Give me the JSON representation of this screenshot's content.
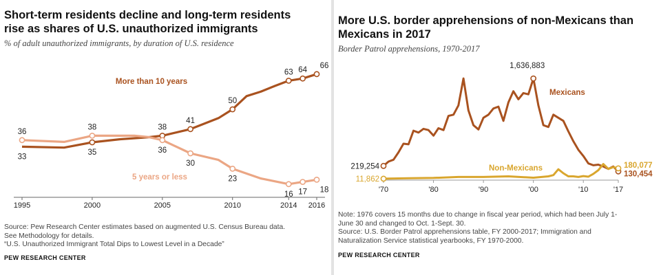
{
  "left": {
    "title_line1": "Short-term residents decline and long-term residents",
    "title_line2": "rise as shares of U.S. unauthorized immigrants",
    "subtitle": "% of adult unauthorized immigrants, by duration of U.S. residence",
    "source_line1": "Source: Pew Research Center estimates based on augmented U.S. Census Bureau data.",
    "source_line2": "See Methodology for details.",
    "source_line3": "“U.S. Unauthorized Immigrant Total Dips to Lowest Level in a Decade”",
    "credit": "PEW RESEARCH CENTER"
  },
  "right": {
    "title_line1": "More U.S. border apprehensions of non-Mexicans than",
    "title_line2": "Mexicans in 2017",
    "subtitle": "Border Patrol apprehensions, 1970-2017",
    "note_line1": "Note: 1976 covers 15 months due to change in fiscal year period, which had been July 1-",
    "note_line2": "June 30 and changed to Oct. 1-Sept. 30.",
    "note_line3": "Source: U.S. Border Patrol apprehensions table, FY 2000-2017; Immigration and",
    "note_line4": "Naturalization Service statistical yearbooks, FY 1970-2000.",
    "credit": "PEW RESEARCH CENTER"
  },
  "colors": {
    "dark_orange": "#a9521f",
    "light_orange": "#eba684",
    "mexicans": "#a9521f",
    "non_mexicans": "#d9a62e",
    "axis": "#666666"
  },
  "chart_data": [
    {
      "type": "line",
      "title": "Short-term residents decline and long-term residents rise as shares of U.S. unauthorized immigrants",
      "subtitle": "% of adult unauthorized immigrants, by duration of U.S. residence",
      "xlim": [
        1995,
        2016
      ],
      "ylim": [
        10,
        70
      ],
      "x_ticks": [
        "1995",
        "2000",
        "2005",
        "2010",
        "2014",
        "2016"
      ],
      "series": [
        {
          "name": "More than 10 years",
          "color": "#a9521f",
          "x": [
            1995,
            1998,
            2000,
            2002,
            2004,
            2005,
            2007,
            2009,
            2010,
            2011,
            2012,
            2013,
            2014,
            2015,
            2016
          ],
          "y": [
            33,
            32.6,
            35,
            36.4,
            37.3,
            38,
            41,
            46,
            50,
            56,
            58,
            60.6,
            63,
            64,
            66
          ],
          "labels": [
            {
              "x": 1995,
              "text": "33",
              "pos": "below"
            },
            {
              "x": 2000,
              "text": "35",
              "pos": "below"
            },
            {
              "x": 2005,
              "text": "38",
              "pos": "above"
            },
            {
              "x": 2007,
              "text": "41",
              "pos": "above"
            },
            {
              "x": 2010,
              "text": "50",
              "pos": "above"
            },
            {
              "x": 2014,
              "text": "63",
              "pos": "above"
            },
            {
              "x": 2015,
              "text": "64",
              "pos": "above"
            },
            {
              "x": 2016,
              "text": "66",
              "pos": "aboveright"
            }
          ],
          "markers": [
            2000,
            2005,
            2007,
            2010,
            2014,
            2015,
            2016
          ]
        },
        {
          "name": "5 years or less",
          "color": "#eba684",
          "x": [
            1995,
            1998,
            2000,
            2003,
            2004,
            2005,
            2007,
            2009,
            2010,
            2012,
            2014,
            2015,
            2016
          ],
          "y": [
            36,
            35.2,
            38,
            38,
            37.4,
            36,
            30,
            27,
            23,
            18.6,
            16,
            17,
            18
          ],
          "labels": [
            {
              "x": 1995,
              "text": "36",
              "pos": "above"
            },
            {
              "x": 2000,
              "text": "38",
              "pos": "above"
            },
            {
              "x": 2005,
              "text": "36",
              "pos": "below"
            },
            {
              "x": 2007,
              "text": "30",
              "pos": "below"
            },
            {
              "x": 2010,
              "text": "23",
              "pos": "below"
            },
            {
              "x": 2014,
              "text": "16",
              "pos": "below"
            },
            {
              "x": 2015,
              "text": "17",
              "pos": "below"
            },
            {
              "x": 2016,
              "text": "18",
              "pos": "belowright"
            }
          ],
          "markers": [
            1995,
            2000,
            2005,
            2007,
            2010,
            2014,
            2015,
            2016
          ]
        }
      ],
      "annotations": [
        "More than 10 years",
        "5 years or less"
      ],
      "grid": false
    },
    {
      "type": "line",
      "title": "More U.S. border apprehensions of non-Mexicans than Mexicans in 2017",
      "subtitle": "Border Patrol apprehensions, 1970-2017",
      "xlim": [
        1970,
        2017
      ],
      "ylim": [
        0,
        1750000
      ],
      "x_ticks": [
        "'70",
        "'80",
        "'90",
        "'00",
        "'10",
        "'17"
      ],
      "x_tick_values": [
        1970,
        1980,
        1990,
        2000,
        2010,
        2017
      ],
      "series": [
        {
          "name": "Mexicans",
          "color": "#a9521f",
          "x": [
            1970,
            1971,
            1972,
            1973,
            1974,
            1975,
            1976,
            1977,
            1978,
            1979,
            1980,
            1981,
            1982,
            1983,
            1984,
            1985,
            1986,
            1987,
            1988,
            1989,
            1990,
            1991,
            1992,
            1993,
            1994,
            1995,
            1996,
            1997,
            1998,
            1999,
            2000,
            2001,
            2002,
            2003,
            2004,
            2005,
            2006,
            2007,
            2008,
            2009,
            2010,
            2011,
            2012,
            2013,
            2014,
            2015,
            2016,
            2017
          ],
          "y": [
            219254,
            290000,
            320000,
            440000,
            580000,
            570000,
            790000,
            760000,
            820000,
            800000,
            710000,
            830000,
            800000,
            1030000,
            1050000,
            1200000,
            1636883,
            1120000,
            880000,
            810000,
            1000000,
            1050000,
            1150000,
            1180000,
            950000,
            1250000,
            1430000,
            1300000,
            1400000,
            1380000,
            1636883,
            1200000,
            880000,
            850000,
            1050000,
            1000000,
            950000,
            780000,
            620000,
            480000,
            380000,
            260000,
            230000,
            240000,
            210000,
            170000,
            210000,
            130454
          ],
          "start_label": "219,254",
          "peak_label": "1,636,883",
          "end_label": "130,454"
        },
        {
          "name": "Non-Mexicans",
          "color": "#d9a62e",
          "x": [
            1970,
            1975,
            1980,
            1985,
            1990,
            1995,
            2000,
            2003,
            2004,
            2005,
            2006,
            2007,
            2008,
            2009,
            2010,
            2011,
            2012,
            2013,
            2014,
            2015,
            2016,
            2017
          ],
          "y": [
            11862,
            20000,
            25000,
            40000,
            40000,
            50000,
            28000,
            50000,
            70000,
            165000,
            100000,
            50000,
            50000,
            40000,
            55000,
            45000,
            90000,
            150000,
            250000,
            170000,
            200000,
            180077
          ],
          "start_label": "11,862",
          "end_label": "180,077"
        }
      ],
      "annotations": [
        "Mexicans",
        "Non-Mexicans",
        "1,636,883"
      ],
      "grid": false
    }
  ]
}
